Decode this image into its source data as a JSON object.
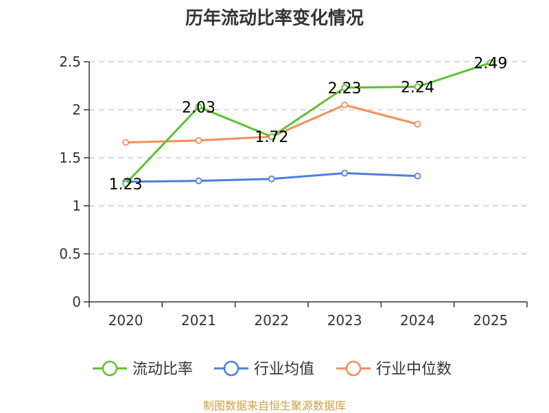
{
  "chart_data": {
    "type": "line",
    "title": "历年流动比率变化情况",
    "categories": [
      "2020",
      "2021",
      "2022",
      "2023",
      "2024",
      "2025"
    ],
    "ylim": [
      0,
      2.5
    ],
    "yticks": [
      "0",
      "0.5",
      "1",
      "1.5",
      "2",
      "2.5"
    ],
    "grid": true,
    "legend_position": "bottom",
    "series": [
      {
        "name": "流动比率",
        "color": "#5cc12f",
        "values": [
          1.23,
          2.03,
          1.72,
          2.23,
          2.24,
          2.49
        ],
        "labels": [
          "1.23",
          "2.03",
          "1.72",
          "2.23",
          "2.24",
          "2.49"
        ]
      },
      {
        "name": "行业均值",
        "color": "#4a7fde",
        "values": [
          1.25,
          1.26,
          1.28,
          1.34,
          1.31,
          null
        ]
      },
      {
        "name": "行业中位数",
        "color": "#f58d5a",
        "values": [
          1.66,
          1.68,
          1.72,
          2.05,
          1.85,
          null
        ]
      }
    ],
    "source": "制图数据来自恒生聚源数据库"
  }
}
